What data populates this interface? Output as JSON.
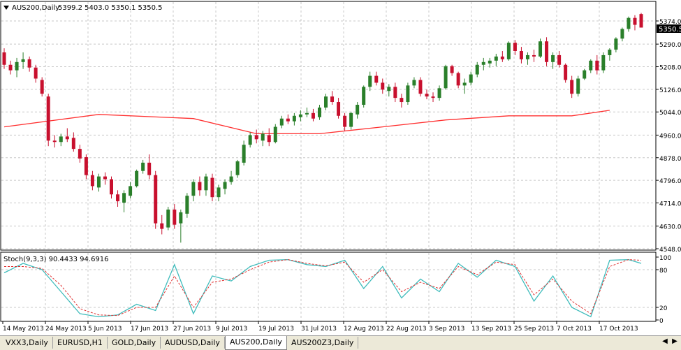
{
  "colors": {
    "bull": "#2a7f2a",
    "bear": "#c8102e",
    "ma": "#ff3030",
    "stoch_main": "#3fbcbc",
    "stoch_signal": "#e03030",
    "grid": "#c8c8c8",
    "axis": "#000000"
  },
  "header": {
    "symbol": "AUS200,Daily",
    "ohlc": "5399.2 5403.0 5350.1 5350.5",
    "arrow_icon": "triangle-down-icon"
  },
  "stoch_header": "Stoch(9,3,3) 90.4433 94.6916",
  "price_axis": {
    "ticks": [
      "5374.0",
      "5290.0",
      "5208.0",
      "5126.0",
      "5044.0",
      "4960.0",
      "4878.0",
      "4796.0",
      "4714.0",
      "4630.0",
      "4548.0"
    ],
    "current_price_label": "5350.5"
  },
  "stoch_axis": {
    "ticks": [
      "100",
      "80",
      "20",
      "0"
    ]
  },
  "time_axis": {
    "labels": [
      "14 May 2013",
      "24 May 2013",
      "5 Jun 2013",
      "17 Jun 2013",
      "27 Jun 2013",
      "9 Jul 2013",
      "19 Jul 2013",
      "31 Jul 2013",
      "12 Aug 2013",
      "22 Aug 2013",
      "3 Sep 2013",
      "13 Sep 2013",
      "25 Sep 2013",
      "7 Oct 2013",
      "17 Oct 2013"
    ]
  },
  "tabs": [
    {
      "label": "VXX3,Daily",
      "active": false
    },
    {
      "label": "EURUSD,H1",
      "active": false
    },
    {
      "label": "GOLD,Daily",
      "active": false
    },
    {
      "label": "AUDUSD,Daily",
      "active": false
    },
    {
      "label": "AUS200,Daily",
      "active": true
    },
    {
      "label": "AUS200Z3,Daily",
      "active": false
    }
  ],
  "chart_data": {
    "type": "candlestick",
    "symbol": "AUS200",
    "timeframe": "Daily",
    "ylim": [
      4548,
      5374
    ],
    "candles": [
      [
        5260,
        5275,
        5200,
        5215
      ],
      [
        5215,
        5230,
        5180,
        5195
      ],
      [
        5195,
        5240,
        5170,
        5225
      ],
      [
        5225,
        5260,
        5200,
        5235
      ],
      [
        5235,
        5245,
        5190,
        5205
      ],
      [
        5205,
        5215,
        5150,
        5165
      ],
      [
        5160,
        5170,
        5100,
        5110
      ],
      [
        5100,
        5110,
        4920,
        4940
      ],
      [
        4940,
        4960,
        4915,
        4935
      ],
      [
        4935,
        4965,
        4920,
        4955
      ],
      [
        4955,
        4985,
        4935,
        4945
      ],
      [
        4950,
        4970,
        4900,
        4910
      ],
      [
        4910,
        4925,
        4860,
        4875
      ],
      [
        4880,
        4890,
        4800,
        4815
      ],
      [
        4815,
        4830,
        4760,
        4775
      ],
      [
        4770,
        4820,
        4755,
        4810
      ],
      [
        4810,
        4825,
        4780,
        4800
      ],
      [
        4800,
        4810,
        4730,
        4745
      ],
      [
        4745,
        4760,
        4700,
        4720
      ],
      [
        4715,
        4760,
        4680,
        4750
      ],
      [
        4740,
        4790,
        4730,
        4775
      ],
      [
        4775,
        4835,
        4770,
        4830
      ],
      [
        4830,
        4870,
        4820,
        4860
      ],
      [
        4860,
        4890,
        4800,
        4815
      ],
      [
        4815,
        4830,
        4620,
        4640
      ],
      [
        4640,
        4670,
        4600,
        4620
      ],
      [
        4625,
        4700,
        4615,
        4690
      ],
      [
        4690,
        4710,
        4620,
        4635
      ],
      [
        4640,
        4690,
        4570,
        4680
      ],
      [
        4675,
        4750,
        4660,
        4740
      ],
      [
        4740,
        4800,
        4720,
        4790
      ],
      [
        4790,
        4810,
        4740,
        4760
      ],
      [
        4760,
        4820,
        4740,
        4810
      ],
      [
        4805,
        4820,
        4720,
        4735
      ],
      [
        4735,
        4780,
        4720,
        4770
      ],
      [
        4765,
        4800,
        4745,
        4790
      ],
      [
        4790,
        4830,
        4780,
        4810
      ],
      [
        4815,
        4870,
        4805,
        4865
      ],
      [
        4860,
        4940,
        4850,
        4925
      ],
      [
        4925,
        4970,
        4915,
        4960
      ],
      [
        4960,
        4980,
        4930,
        4945
      ],
      [
        4940,
        4975,
        4920,
        4965
      ],
      [
        4960,
        4985,
        4920,
        4935
      ],
      [
        4935,
        5000,
        4930,
        4990
      ],
      [
        4995,
        5030,
        4985,
        5020
      ],
      [
        5020,
        5035,
        5000,
        5010
      ],
      [
        5010,
        5040,
        4995,
        5030
      ],
      [
        5025,
        5050,
        5010,
        5035
      ],
      [
        5035,
        5060,
        5025,
        5040
      ],
      [
        5040,
        5055,
        5010,
        5020
      ],
      [
        5025,
        5070,
        5015,
        5060
      ],
      [
        5060,
        5110,
        5050,
        5100
      ],
      [
        5100,
        5120,
        5070,
        5080
      ],
      [
        5080,
        5095,
        5020,
        5030
      ],
      [
        5030,
        5040,
        4975,
        4990
      ],
      [
        4990,
        5045,
        4980,
        5040
      ],
      [
        5035,
        5080,
        5020,
        5070
      ],
      [
        5070,
        5140,
        5060,
        5135
      ],
      [
        5135,
        5190,
        5120,
        5175
      ],
      [
        5175,
        5190,
        5140,
        5150
      ],
      [
        5150,
        5165,
        5110,
        5125
      ],
      [
        5120,
        5145,
        5100,
        5135
      ],
      [
        5135,
        5150,
        5080,
        5095
      ],
      [
        5095,
        5110,
        5060,
        5080
      ],
      [
        5080,
        5150,
        5070,
        5140
      ],
      [
        5140,
        5170,
        5130,
        5160
      ],
      [
        5160,
        5170,
        5100,
        5110
      ],
      [
        5110,
        5125,
        5090,
        5100
      ],
      [
        5100,
        5115,
        5080,
        5095
      ],
      [
        5095,
        5140,
        5085,
        5130
      ],
      [
        5130,
        5215,
        5125,
        5210
      ],
      [
        5210,
        5215,
        5175,
        5185
      ],
      [
        5185,
        5190,
        5130,
        5140
      ],
      [
        5140,
        5165,
        5110,
        5150
      ],
      [
        5150,
        5190,
        5140,
        5180
      ],
      [
        5180,
        5225,
        5170,
        5215
      ],
      [
        5215,
        5240,
        5195,
        5225
      ],
      [
        5220,
        5240,
        5205,
        5230
      ],
      [
        5230,
        5255,
        5210,
        5245
      ],
      [
        5245,
        5265,
        5225,
        5235
      ],
      [
        5235,
        5300,
        5230,
        5295
      ],
      [
        5295,
        5305,
        5250,
        5265
      ],
      [
        5265,
        5280,
        5220,
        5235
      ],
      [
        5235,
        5260,
        5215,
        5250
      ],
      [
        5250,
        5270,
        5225,
        5245
      ],
      [
        5245,
        5310,
        5240,
        5300
      ],
      [
        5300,
        5315,
        5210,
        5225
      ],
      [
        5225,
        5260,
        5200,
        5250
      ],
      [
        5250,
        5265,
        5205,
        5215
      ],
      [
        5215,
        5220,
        5150,
        5160
      ],
      [
        5160,
        5175,
        5095,
        5110
      ],
      [
        5110,
        5175,
        5100,
        5165
      ],
      [
        5165,
        5200,
        5160,
        5195
      ],
      [
        5195,
        5235,
        5185,
        5230
      ],
      [
        5230,
        5250,
        5180,
        5195
      ],
      [
        5195,
        5260,
        5185,
        5250
      ],
      [
        5250,
        5275,
        5230,
        5270
      ],
      [
        5270,
        5315,
        5260,
        5310
      ],
      [
        5310,
        5350,
        5300,
        5345
      ],
      [
        5345,
        5390,
        5335,
        5385
      ],
      [
        5385,
        5395,
        5340,
        5360
      ],
      [
        5399,
        5403,
        5350,
        5350
      ]
    ],
    "moving_average": {
      "points": [
        [
          0,
          4990
        ],
        [
          15,
          5035
        ],
        [
          30,
          5020
        ],
        [
          40,
          4965
        ],
        [
          50,
          4965
        ],
        [
          60,
          4990
        ],
        [
          70,
          5015
        ],
        [
          80,
          5030
        ],
        [
          90,
          5030
        ],
        [
          96,
          5050
        ]
      ]
    },
    "stochastic": {
      "params": "9,3,3",
      "main_last": 90.4433,
      "signal_last": 94.6916,
      "main_points": [
        [
          0,
          75
        ],
        [
          3,
          90
        ],
        [
          6,
          80
        ],
        [
          9,
          45
        ],
        [
          12,
          10
        ],
        [
          15,
          5
        ],
        [
          18,
          8
        ],
        [
          21,
          25
        ],
        [
          24,
          15
        ],
        [
          27,
          88
        ],
        [
          30,
          10
        ],
        [
          33,
          70
        ],
        [
          36,
          62
        ],
        [
          39,
          85
        ],
        [
          42,
          95
        ],
        [
          45,
          96
        ],
        [
          48,
          88
        ],
        [
          51,
          85
        ],
        [
          54,
          95
        ],
        [
          57,
          50
        ],
        [
          60,
          85
        ],
        [
          63,
          35
        ],
        [
          66,
          65
        ],
        [
          69,
          45
        ],
        [
          72,
          90
        ],
        [
          75,
          68
        ],
        [
          78,
          95
        ],
        [
          81,
          85
        ],
        [
          84,
          30
        ],
        [
          87,
          70
        ],
        [
          90,
          20
        ],
        [
          93,
          5
        ],
        [
          96,
          95
        ],
        [
          99,
          96
        ],
        [
          101,
          90
        ]
      ],
      "signal_points": [
        [
          0,
          85
        ],
        [
          3,
          85
        ],
        [
          6,
          82
        ],
        [
          9,
          55
        ],
        [
          12,
          18
        ],
        [
          15,
          8
        ],
        [
          18,
          7
        ],
        [
          21,
          20
        ],
        [
          24,
          20
        ],
        [
          27,
          70
        ],
        [
          30,
          20
        ],
        [
          33,
          60
        ],
        [
          36,
          65
        ],
        [
          39,
          80
        ],
        [
          42,
          92
        ],
        [
          45,
          96
        ],
        [
          48,
          90
        ],
        [
          51,
          86
        ],
        [
          54,
          92
        ],
        [
          57,
          60
        ],
        [
          60,
          80
        ],
        [
          63,
          45
        ],
        [
          66,
          60
        ],
        [
          69,
          50
        ],
        [
          72,
          85
        ],
        [
          75,
          72
        ],
        [
          78,
          92
        ],
        [
          81,
          88
        ],
        [
          84,
          40
        ],
        [
          87,
          65
        ],
        [
          90,
          30
        ],
        [
          93,
          10
        ],
        [
          96,
          85
        ],
        [
          99,
          96
        ],
        [
          101,
          95
        ]
      ]
    }
  }
}
